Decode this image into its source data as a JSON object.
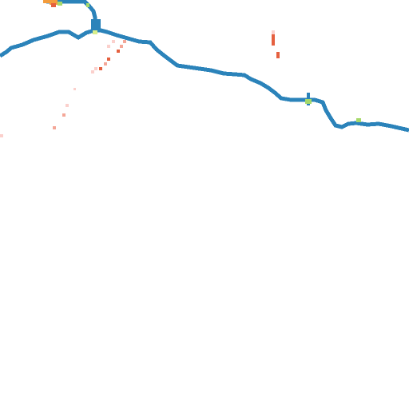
{
  "map": {
    "background_color": "#ffffff",
    "river_color": "#2b83ba",
    "overlay_colors": {
      "light_pink": "#fbd0cc",
      "pink": "#f4a798",
      "red_orange": "#e5603f",
      "orange": "#f39c3c",
      "light_green": "#a6d96a",
      "pale_green": "#d9ef8b"
    },
    "features": [
      {
        "kind": "river",
        "name": "main-river",
        "color_key": "river_color"
      },
      {
        "kind": "pixel-cluster",
        "name": "orange-cluster",
        "color_key": "orange"
      },
      {
        "kind": "pixel-cluster",
        "name": "pink-diagonal-trail",
        "color_key": "pink"
      },
      {
        "kind": "pixel-cluster",
        "name": "red-vertical-streak",
        "color_key": "red_orange"
      },
      {
        "kind": "pixel-cluster",
        "name": "green-highlights",
        "color_key": "light_green"
      }
    ]
  }
}
